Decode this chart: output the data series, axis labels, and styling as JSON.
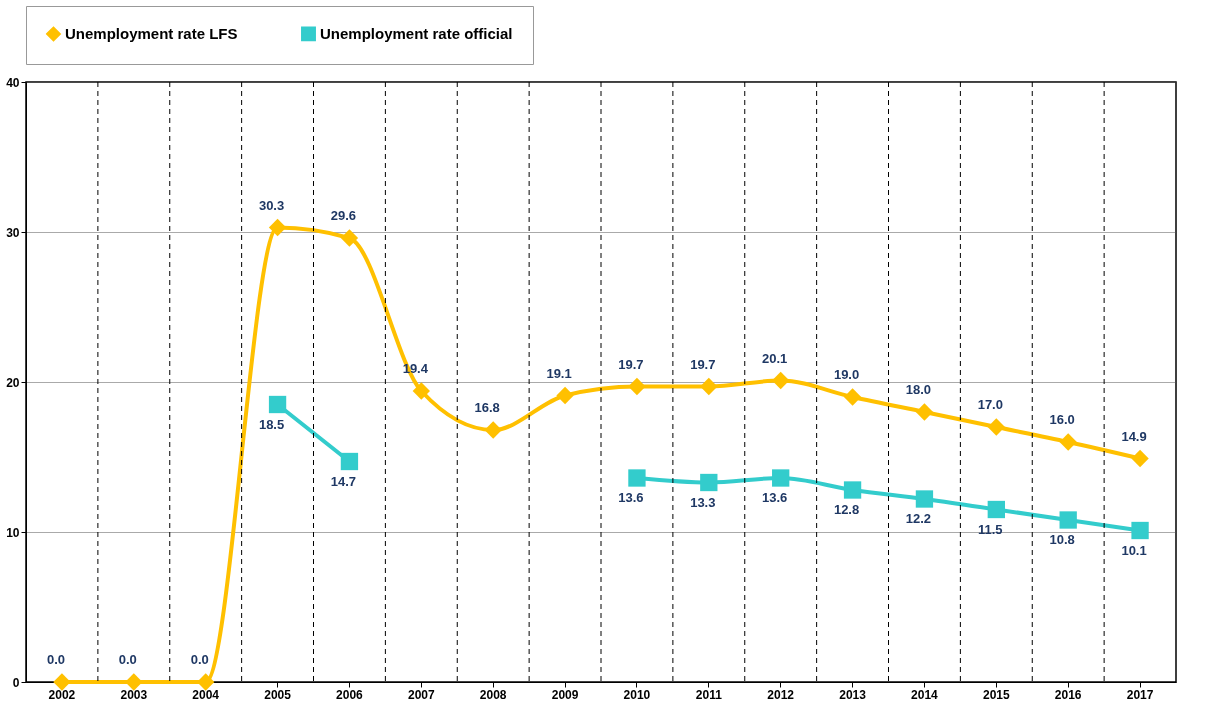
{
  "chart_data": {
    "type": "line",
    "categories": [
      "2002",
      "2003",
      "2004",
      "2005",
      "2006",
      "2007",
      "2008",
      "2009",
      "2010",
      "2011",
      "2012",
      "2013",
      "2014",
      "2015",
      "2016",
      "2017"
    ],
    "series": [
      {
        "name": "Unemployment rate LFS",
        "color": "#ffc000",
        "marker": "diamond",
        "values": [
          0.0,
          0.0,
          0.0,
          30.3,
          29.6,
          19.4,
          16.8,
          19.1,
          19.7,
          19.7,
          20.1,
          19.0,
          18.0,
          17.0,
          16.0,
          14.9
        ],
        "value_labels": [
          "0.0",
          "0.0",
          "0.0",
          "30.3",
          "29.6",
          "19.4",
          "16.8",
          "19.1",
          "19.7",
          "19.7",
          "20.1",
          "19.0",
          "18.0",
          "17.0",
          "16.0",
          "14.9"
        ]
      },
      {
        "name": "Unemployment rate official",
        "color": "#33cccc",
        "marker": "square",
        "values": [
          null,
          null,
          null,
          18.5,
          14.7,
          null,
          null,
          null,
          13.6,
          13.3,
          13.6,
          12.8,
          12.2,
          11.5,
          10.8,
          10.1
        ],
        "value_labels": [
          null,
          null,
          null,
          "18.5",
          "14.7",
          null,
          null,
          null,
          "13.6",
          "13.3",
          "13.6",
          "12.8",
          "12.2",
          "11.5",
          "10.8",
          "10.1"
        ]
      }
    ],
    "ylim": [
      0,
      40
    ],
    "yticks": [
      0,
      10,
      20,
      30,
      40
    ],
    "grid": true,
    "legend": "top"
  }
}
